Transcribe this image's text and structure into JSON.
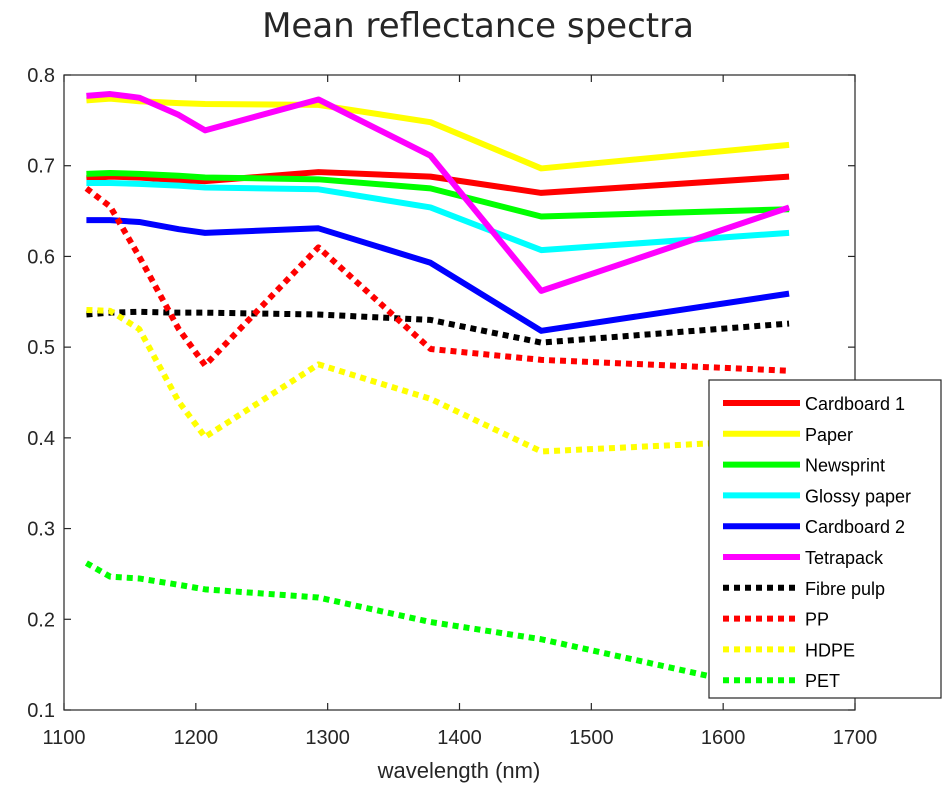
{
  "chart_data": {
    "type": "line",
    "title": "Mean reflectance spectra",
    "xlabel": "wavelength (nm)",
    "ylabel": "",
    "xlim": [
      1100,
      1700
    ],
    "ylim": [
      0.1,
      0.8
    ],
    "x_ticks": [
      "1100",
      "1200",
      "1300",
      "1400",
      "1500",
      "1600",
      "1700"
    ],
    "y_ticks": [
      "0.1",
      "0.2",
      "0.3",
      "0.4",
      "0.5",
      "0.6",
      "0.7",
      "0.8"
    ],
    "grid": false,
    "legend_position": "right",
    "series": [
      {
        "name": "Cardboard 1",
        "color": "#ff0000",
        "style": "solid",
        "x": [
          1117,
          1135,
          1157,
          1187,
          1207,
          1293,
          1378,
          1462,
          1650
        ],
        "y": [
          0.686,
          0.688,
          0.687,
          0.684,
          0.683,
          0.693,
          0.688,
          0.67,
          0.688
        ]
      },
      {
        "name": "Paper",
        "color": "#ffff00",
        "style": "solid",
        "x": [
          1117,
          1135,
          1157,
          1187,
          1207,
          1293,
          1378,
          1462,
          1650
        ],
        "y": [
          0.772,
          0.774,
          0.771,
          0.769,
          0.768,
          0.767,
          0.748,
          0.697,
          0.723
        ]
      },
      {
        "name": "Newsprint",
        "color": "#00ff00",
        "style": "solid",
        "x": [
          1117,
          1135,
          1157,
          1187,
          1207,
          1293,
          1378,
          1462,
          1650
        ],
        "y": [
          0.691,
          0.692,
          0.691,
          0.689,
          0.687,
          0.685,
          0.675,
          0.644,
          0.652
        ]
      },
      {
        "name": "Glossy paper",
        "color": "#00ffff",
        "style": "solid",
        "x": [
          1117,
          1135,
          1157,
          1187,
          1207,
          1293,
          1378,
          1462,
          1650
        ],
        "y": [
          0.681,
          0.681,
          0.68,
          0.678,
          0.676,
          0.674,
          0.654,
          0.607,
          0.626
        ]
      },
      {
        "name": "Cardboard 2",
        "color": "#0000ff",
        "style": "solid",
        "x": [
          1117,
          1135,
          1157,
          1187,
          1207,
          1293,
          1378,
          1462,
          1650
        ],
        "y": [
          0.64,
          0.64,
          0.638,
          0.63,
          0.626,
          0.631,
          0.593,
          0.518,
          0.559
        ]
      },
      {
        "name": "Tetrapack",
        "color": "#ff00ff",
        "style": "solid",
        "x": [
          1117,
          1135,
          1157,
          1187,
          1207,
          1293,
          1378,
          1462,
          1650
        ],
        "y": [
          0.777,
          0.779,
          0.775,
          0.756,
          0.739,
          0.773,
          0.711,
          0.562,
          0.654
        ]
      },
      {
        "name": "Fibre pulp",
        "color": "#000000",
        "style": "dotted",
        "x": [
          1117,
          1135,
          1157,
          1187,
          1207,
          1293,
          1378,
          1462,
          1650
        ],
        "y": [
          0.536,
          0.538,
          0.539,
          0.538,
          0.538,
          0.536,
          0.53,
          0.505,
          0.526
        ]
      },
      {
        "name": "PP",
        "color": "#ff0000",
        "style": "dotted",
        "x": [
          1117,
          1135,
          1157,
          1187,
          1207,
          1293,
          1378,
          1462,
          1650
        ],
        "y": [
          0.675,
          0.655,
          0.6,
          0.52,
          0.48,
          0.61,
          0.498,
          0.486,
          0.474
        ]
      },
      {
        "name": "HDPE",
        "color": "#ffff00",
        "style": "dotted",
        "x": [
          1117,
          1135,
          1157,
          1187,
          1207,
          1293,
          1378,
          1462,
          1650
        ],
        "y": [
          0.541,
          0.54,
          0.52,
          0.44,
          0.401,
          0.481,
          0.443,
          0.385,
          0.398
        ]
      },
      {
        "name": "PET",
        "color": "#00ff00",
        "style": "dotted",
        "x": [
          1117,
          1135,
          1157,
          1187,
          1207,
          1293,
          1378,
          1462,
          1650
        ],
        "y": [
          0.262,
          0.247,
          0.245,
          0.238,
          0.233,
          0.224,
          0.197,
          0.178,
          0.118
        ]
      }
    ]
  }
}
